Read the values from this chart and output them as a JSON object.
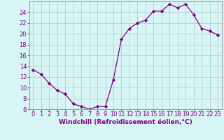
{
  "x": [
    0,
    1,
    2,
    3,
    4,
    5,
    6,
    7,
    8,
    9,
    10,
    11,
    12,
    13,
    14,
    15,
    16,
    17,
    18,
    19,
    20,
    21,
    22,
    23
  ],
  "y": [
    13.3,
    12.5,
    10.8,
    9.5,
    8.8,
    7.0,
    6.5,
    6.0,
    6.5,
    6.5,
    11.5,
    19.0,
    21.0,
    22.0,
    22.5,
    24.2,
    24.2,
    25.5,
    24.8,
    25.5,
    23.5,
    21.0,
    20.5,
    19.8
  ],
  "line_color": "#800080",
  "marker": "D",
  "marker_size": 2.2,
  "bg_color": "#d8f5f5",
  "grid_color": "#b0cece",
  "xlabel": "Windchill (Refroidissement éolien,°C)",
  "ylim": [
    6,
    26
  ],
  "xlim_min": -0.5,
  "xlim_max": 23.5,
  "yticks": [
    6,
    8,
    10,
    12,
    14,
    16,
    18,
    20,
    22,
    24
  ],
  "xticks": [
    0,
    1,
    2,
    3,
    4,
    5,
    6,
    7,
    8,
    9,
    10,
    11,
    12,
    13,
    14,
    15,
    16,
    17,
    18,
    19,
    20,
    21,
    22,
    23
  ],
  "tick_color": "#800080",
  "label_color": "#800080",
  "xlabel_fontsize": 6.5,
  "tick_fontsize": 6.0,
  "linewidth": 0.9
}
